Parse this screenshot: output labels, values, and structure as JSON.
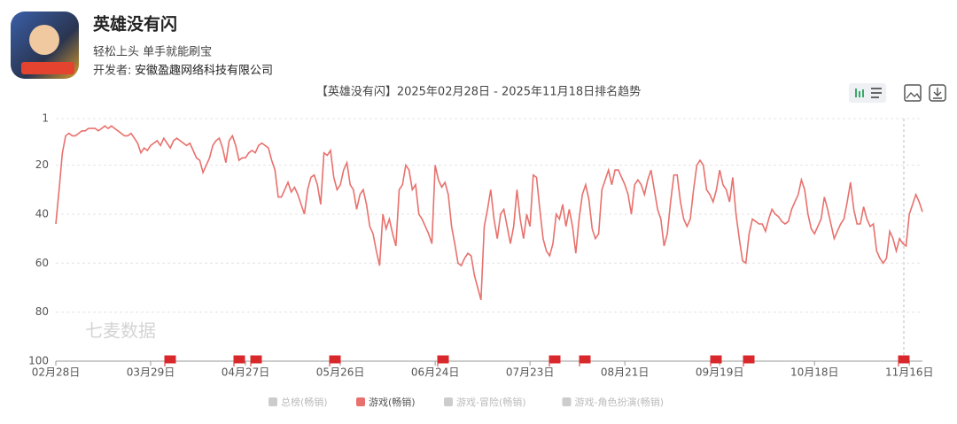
{
  "header": {
    "app_name": "英雄没有闪",
    "slogan": "轻松上头 单手就能刷宝",
    "developer_label": "开发者:",
    "developer": "安徽盈趣网络科技有限公司"
  },
  "watermark": "七麦数据",
  "chart_data": {
    "type": "line",
    "title": "【英雄没有闪】2025年02月28日 - 2025年11月18日排名趋势",
    "categories": [
      "02月28日",
      null,
      null,
      null,
      null,
      null,
      null,
      null,
      null,
      null,
      null,
      null,
      null,
      null,
      null,
      null,
      null,
      null,
      null,
      null,
      null,
      null,
      null,
      null,
      null,
      null,
      null,
      null,
      null,
      "03月29日",
      null,
      null,
      null,
      null,
      null,
      null,
      null,
      null,
      null,
      null,
      null,
      null,
      null,
      null,
      null,
      null,
      null,
      null,
      null,
      null,
      null,
      null,
      null,
      null,
      null,
      null,
      null,
      null,
      "04月27日",
      null,
      null,
      null,
      null,
      null,
      null,
      null,
      null,
      null,
      null,
      null,
      null,
      null,
      null,
      null,
      null,
      null,
      null,
      null,
      null,
      null,
      null,
      null,
      null,
      null,
      null,
      null,
      null,
      "05月26日",
      null,
      null,
      null,
      null,
      null,
      null,
      null,
      null,
      null,
      null,
      null,
      null,
      null,
      null,
      null,
      null,
      null,
      null,
      null,
      null,
      null,
      null,
      null,
      null,
      null,
      null,
      null,
      null,
      "06月24日",
      null,
      null,
      null,
      null,
      null,
      null,
      null,
      null,
      null,
      null,
      null,
      null,
      null,
      null,
      null,
      null,
      null,
      null,
      null,
      null,
      null,
      null,
      null,
      null,
      null,
      null,
      null,
      null,
      "07月23日",
      null,
      null,
      null,
      null,
      null,
      null,
      null,
      null,
      null,
      null,
      null,
      null,
      null,
      null,
      null,
      null,
      null,
      null,
      null,
      null,
      null,
      null,
      null,
      null,
      null,
      null,
      null,
      null,
      "08月21日",
      null,
      null,
      null,
      null,
      null,
      null,
      null,
      null,
      null,
      null,
      null,
      null,
      null,
      null,
      null,
      null,
      null,
      null,
      null,
      null,
      null,
      null,
      null,
      null,
      null,
      null,
      null,
      null,
      "09月19日",
      null,
      null,
      null,
      null,
      null,
      null,
      null,
      null,
      null,
      null,
      null,
      null,
      null,
      null,
      null,
      null,
      null,
      null,
      null,
      null,
      null,
      null,
      null,
      null,
      null,
      null,
      null,
      null,
      "10月18日",
      null,
      null,
      null,
      null,
      null,
      null,
      null,
      null,
      null,
      null,
      null,
      null,
      null,
      null,
      null,
      null,
      null,
      null,
      null,
      null,
      null,
      null,
      null,
      null,
      null,
      null,
      null,
      null,
      "11月16日",
      null,
      null,
      null,
      null
    ],
    "series": [
      {
        "name": "游戏(畅销)",
        "color": "#e8716d",
        "values": [
          44,
          30,
          15,
          8,
          7,
          8,
          8,
          7,
          6,
          6,
          5,
          5,
          5,
          6,
          5,
          4,
          5,
          4,
          5,
          6,
          7,
          8,
          8,
          7,
          9,
          11,
          15,
          13,
          14,
          12,
          11,
          10,
          12,
          9,
          11,
          13,
          10,
          9,
          10,
          11,
          12,
          11,
          14,
          17,
          18,
          23,
          20,
          17,
          12,
          10,
          9,
          13,
          19,
          10,
          8,
          12,
          18,
          17,
          17,
          15,
          14,
          15,
          12,
          11,
          12,
          13,
          18,
          22,
          33,
          33,
          30,
          27,
          31,
          29,
          32,
          36,
          40,
          30,
          25,
          24,
          28,
          36,
          15,
          16,
          14,
          25,
          30,
          28,
          22,
          19,
          28,
          30,
          38,
          32,
          30,
          36,
          45,
          48,
          55,
          61,
          40,
          46,
          42,
          48,
          53,
          30,
          28,
          20,
          22,
          30,
          28,
          40,
          42,
          45,
          48,
          52,
          20,
          26,
          29,
          27,
          32,
          45,
          52,
          60,
          61,
          58,
          56,
          57,
          65,
          70,
          75,
          45,
          38,
          30,
          42,
          50,
          40,
          38,
          45,
          52,
          45,
          30,
          42,
          50,
          40,
          45,
          24,
          25,
          38,
          50,
          55,
          57,
          52,
          40,
          42,
          36,
          45,
          38,
          45,
          56,
          42,
          32,
          28,
          34,
          46,
          50,
          48,
          30,
          26,
          22,
          28,
          22,
          22,
          25,
          28,
          32,
          40,
          28,
          26,
          28,
          32,
          26,
          22,
          30,
          38,
          42,
          53,
          48,
          35,
          24,
          24,
          35,
          42,
          45,
          42,
          30,
          20,
          18,
          20,
          30,
          32,
          35,
          30,
          22,
          28,
          30,
          35,
          25,
          40,
          50,
          59,
          60,
          48,
          42,
          43,
          44,
          44,
          47,
          42,
          38,
          40,
          41,
          43,
          44,
          43,
          38,
          35,
          32,
          26,
          30,
          40,
          46,
          48,
          45,
          42,
          33,
          38,
          44,
          50,
          47,
          44,
          42,
          35,
          27,
          38,
          44,
          44,
          37,
          42,
          45,
          44,
          55,
          58,
          60,
          58,
          47,
          50,
          55,
          50,
          52,
          53,
          40,
          36,
          32,
          35,
          39
        ]
      }
    ],
    "inactive_legend": [
      "总榜(畅销)",
      "游戏-冒险(畅销)",
      "游戏-角色扮演(畅销)"
    ],
    "ylim": [
      1,
      100
    ],
    "y_inverted": true,
    "yticks": [
      1,
      20,
      40,
      60,
      80,
      100
    ],
    "grid": true
  }
}
